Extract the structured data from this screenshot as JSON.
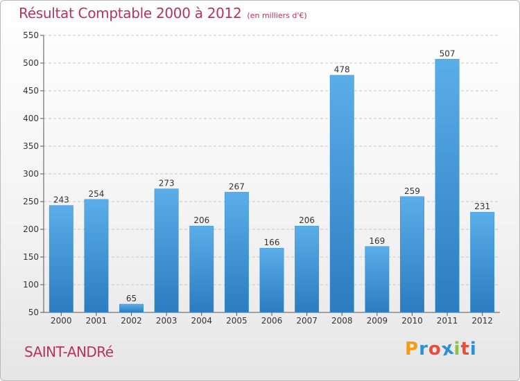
{
  "title": "Résultat Comptable 2000 à 2012",
  "subtitle": "(en milliers d'€)",
  "commune": "SAINT-ANDRé",
  "logo": {
    "letters": [
      "P",
      "r",
      "o",
      "x",
      "i",
      "t",
      "i"
    ],
    "colors": [
      "#f39c12",
      "#2e8fd6",
      "#e74c3c",
      "#2e8fd6",
      "#8bc34a",
      "#e74c3c",
      "#2e8fd6"
    ]
  },
  "colors": {
    "accent": "#b8325f",
    "bar_top": "#5aaee8",
    "bar_bottom": "#2b7cc0",
    "grid": "#c8c8c8"
  },
  "chart_data": {
    "type": "bar",
    "title": "Résultat Comptable 2000 à 2012",
    "subtitle": "(en milliers d'€)",
    "categories": [
      "2000",
      "2001",
      "2002",
      "2003",
      "2004",
      "2005",
      "2006",
      "2007",
      "2008",
      "2009",
      "2010",
      "2011",
      "2012"
    ],
    "values": [
      243,
      254,
      65,
      273,
      206,
      267,
      166,
      206,
      478,
      169,
      259,
      507,
      231
    ],
    "ylim": [
      50,
      550
    ],
    "yticks": [
      50,
      100,
      150,
      200,
      250,
      300,
      350,
      400,
      450,
      500,
      550
    ],
    "grid": true,
    "data_labels": true
  }
}
